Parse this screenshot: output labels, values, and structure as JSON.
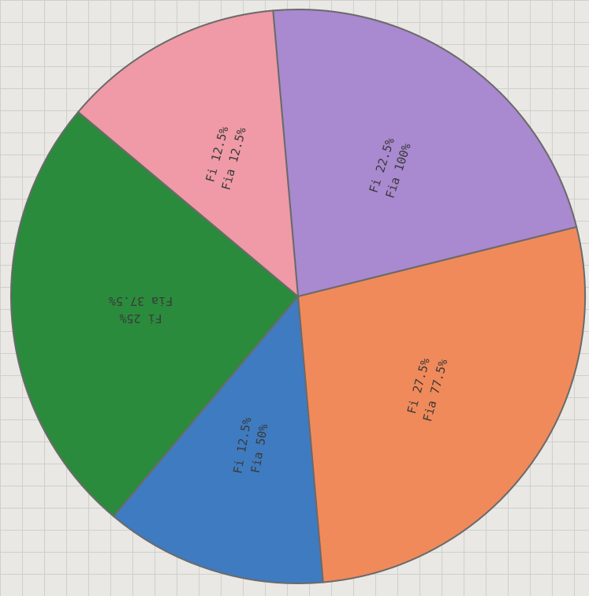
{
  "chart_data": {
    "type": "pie",
    "categories": [
      null,
      null,
      null,
      null,
      null
    ],
    "values": [
      22.5,
      27.5,
      12.5,
      25,
      12.5
    ],
    "value_labels": [
      "Fi 22.5%",
      "Fi 27.5%",
      "Fi 12.5%",
      "Fi 25%",
      "Fi 12.5%"
    ],
    "cumulative_labels": [
      "Fia 100%",
      "Fia 77.5%",
      "Fia 50%",
      "Fia 37.5%",
      "Fia 12.5%"
    ],
    "colors": [
      "#a989cf",
      "#f08a5a",
      "#3f7bc0",
      "#2b8b3c",
      "#ef9aa6"
    ]
  }
}
